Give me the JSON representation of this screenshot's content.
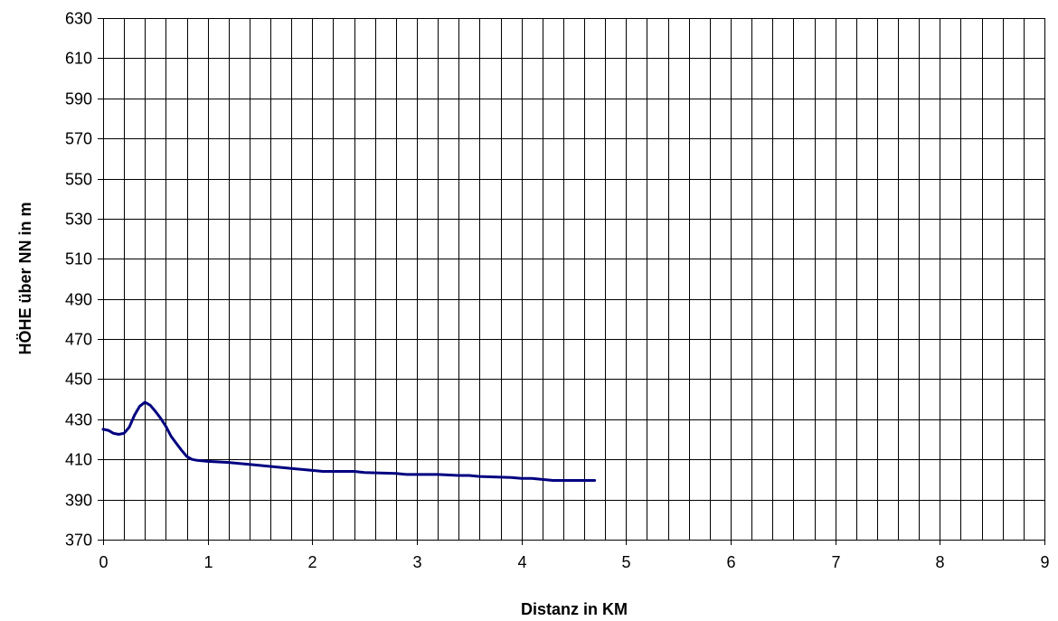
{
  "chart_data": {
    "type": "line",
    "title": "",
    "xlabel": "Distanz in KM",
    "ylabel": "HÖHE über NN in m",
    "xlim": [
      0,
      9
    ],
    "ylim": [
      370,
      630
    ],
    "x_ticks": [
      0,
      1,
      2,
      3,
      4,
      5,
      6,
      7,
      8,
      9
    ],
    "y_ticks": [
      370,
      390,
      410,
      430,
      450,
      470,
      490,
      510,
      530,
      550,
      570,
      590,
      610,
      630
    ],
    "x_minor_step": 0.2,
    "grid": true,
    "legend": "none",
    "line_color": "#000080",
    "series": [
      {
        "x": [
          0,
          0.05,
          0.1,
          0.15,
          0.2,
          0.25,
          0.3,
          0.35,
          0.4,
          0.45,
          0.5,
          0.55,
          0.6,
          0.65,
          0.7,
          0.75,
          0.8,
          0.85,
          0.9,
          1.0,
          1.2,
          1.4,
          1.6,
          1.8,
          2.0,
          2.1,
          2.4,
          2.5,
          2.8,
          2.9,
          3.2,
          3.4,
          3.5,
          3.6,
          3.9,
          4.0,
          4.1,
          4.2,
          4.3,
          4.5,
          4.7
        ],
        "values": [
          425,
          424.5,
          423,
          422.5,
          423,
          426,
          432,
          436.5,
          438.5,
          437,
          434,
          430.5,
          426.5,
          421.5,
          418,
          414.5,
          411.5,
          410,
          409.5,
          409,
          408.5,
          407.5,
          406.5,
          405.5,
          404.5,
          404,
          404,
          403.5,
          403,
          402.5,
          402.5,
          402,
          402,
          401.5,
          401,
          400.5,
          400.5,
          400,
          399.5,
          399.5,
          399.5
        ]
      }
    ]
  }
}
